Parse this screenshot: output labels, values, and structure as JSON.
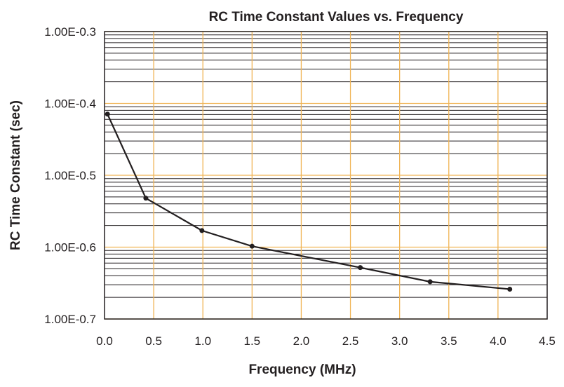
{
  "chart_data": {
    "type": "line",
    "title": "RC Time Constant Values vs. Frequency",
    "xlabel": "Frequency (MHz)",
    "ylabel": "RC Time Constant (sec)",
    "xlim": [
      0,
      4.5
    ],
    "ylim": [
      1e-07,
      0.001
    ],
    "yscale": "log",
    "grid": true,
    "legend": "none",
    "x_ticks": [
      0,
      0.5,
      1,
      1.5,
      2,
      2.5,
      3,
      3.5,
      4,
      4.5
    ],
    "x_tick_labels": [
      "0.0",
      "0.5",
      "1.0",
      "1.5",
      "2.0",
      "2.5",
      "3.0",
      "3.5",
      "4.0",
      "4.5"
    ],
    "y_ticks": [
      0.001,
      0.0001,
      1e-05,
      1e-06,
      1e-07
    ],
    "y_tick_labels": [
      "1.00E-0.3",
      "1.00E-0.4",
      "1.00E-0.5",
      "1.00E-0.6",
      "1.00E-0.7"
    ],
    "colors": {
      "line": "#231f20",
      "major_grid": "#f0b455",
      "minor_grid": "#231f20"
    },
    "series": [
      {
        "x": [
          0.03,
          0.42,
          0.99,
          1.5,
          2.6,
          3.31,
          4.12
        ],
        "y": [
          7.1e-05,
          4.8e-06,
          1.7e-06,
          1.03e-06,
          5.2e-07,
          3.3e-07,
          2.6e-07
        ]
      }
    ]
  }
}
